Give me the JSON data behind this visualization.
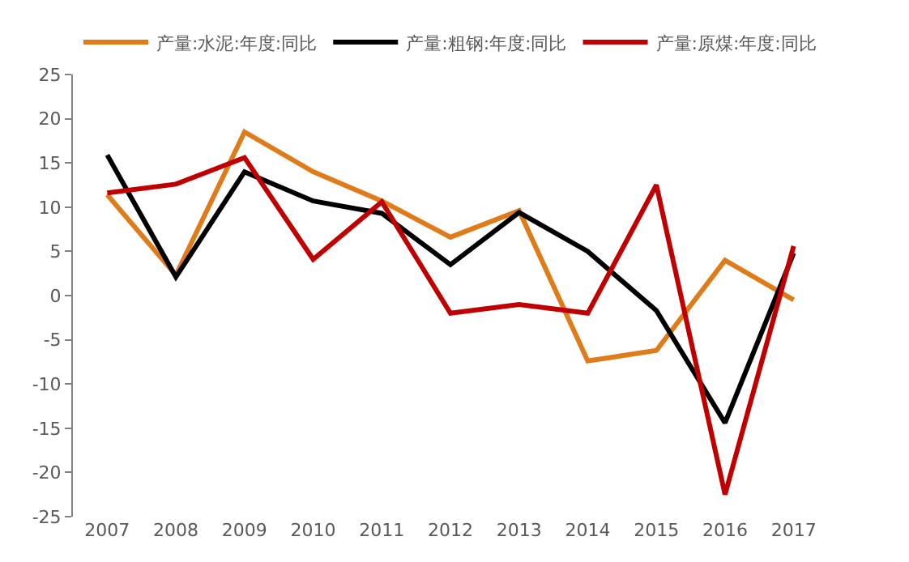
{
  "chart_data": {
    "type": "line",
    "categories": [
      "2007",
      "2008",
      "2009",
      "2010",
      "2011",
      "2012",
      "2013",
      "2014",
      "2015",
      "2016",
      "2017"
    ],
    "series": [
      {
        "name": "产量:水泥:年度:同比",
        "color": "#e07b1a",
        "values": [
          11.4,
          2.3,
          18.5,
          14,
          10.7,
          6.6,
          9.6,
          -7.4,
          -6.2,
          4.0,
          -0.5
        ]
      },
      {
        "name": "产量:粗钢:年度:同比",
        "color": "#000000",
        "values": [
          15.9,
          2.1,
          14,
          10.7,
          9.3,
          3.5,
          9.4,
          5.0,
          -1.7,
          -14.4,
          4.8
        ]
      },
      {
        "name": "产量:原煤:年度:同比",
        "color": "#c00000",
        "values": [
          11.6,
          12.6,
          15.6,
          4.1,
          10.6,
          -2.0,
          -1.0,
          -2.0,
          12.5,
          -22.5,
          5.6
        ]
      }
    ],
    "ylim": [
      -25,
      25
    ],
    "yticks": [
      -25,
      -20,
      -15,
      -10,
      -5,
      0,
      5,
      10,
      15,
      20,
      25
    ],
    "grid": false,
    "legend": "top",
    "marker": "none",
    "line_style": "solid"
  }
}
